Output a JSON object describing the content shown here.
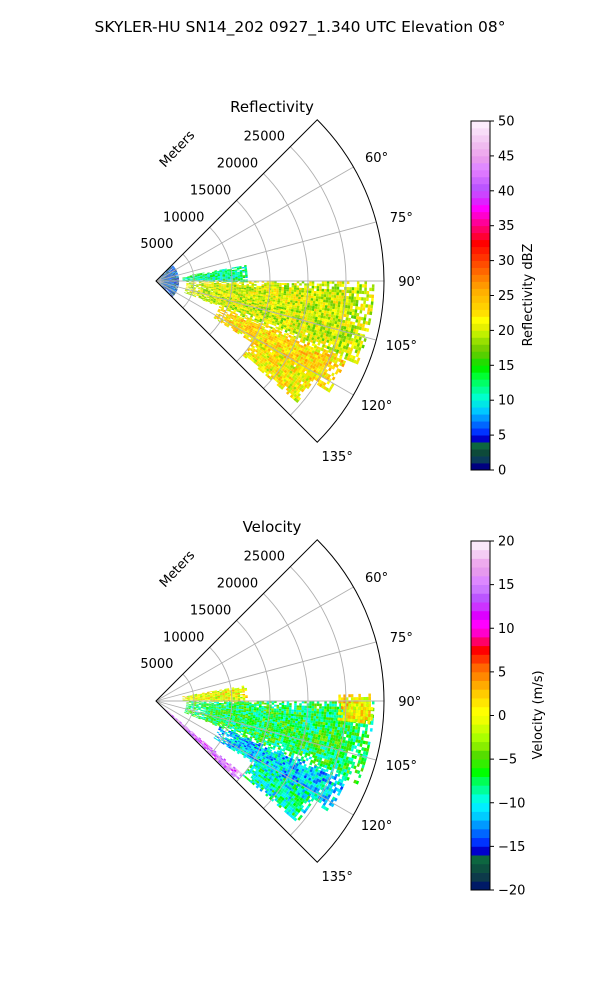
{
  "suptitle": "SKYLER-HU  SN14_202  0927_1.340 UTC Elevation 08°",
  "colors": {
    "grid": "#b0b0b0",
    "frame": "#000000",
    "background": "#ffffff"
  },
  "chart_data": [
    {
      "type": "polar-sector",
      "title": "Reflectivity",
      "radial_label": "Meters",
      "r_range": [
        0,
        30000
      ],
      "r_ticks": [
        5000,
        10000,
        15000,
        20000,
        25000
      ],
      "r_tick_labels": [
        "5000",
        "10000",
        "15000",
        "20000",
        "25000"
      ],
      "theta_range_deg": [
        45,
        135
      ],
      "theta_ticks_deg": [
        60,
        75,
        90,
        105,
        120,
        135
      ],
      "theta_tick_labels": [
        "60°",
        "75°",
        "90°",
        "105°",
        "120°",
        "135°"
      ],
      "grid": true,
      "colorbar": {
        "label": "Reflectivity dBZ",
        "range": [
          0,
          50
        ],
        "ticks": [
          "0",
          "5",
          "10",
          "15",
          "20",
          "25",
          "30",
          "35",
          "40",
          "45",
          "50"
        ],
        "palette": [
          "#000080",
          "#0a3a5a",
          "#0d4a3a",
          "#0d6640",
          "#0000c8",
          "#0033ff",
          "#0066ff",
          "#0099ff",
          "#00c8ff",
          "#00e6e6",
          "#00ffcc",
          "#00ff99",
          "#00ff66",
          "#00ff33",
          "#00f000",
          "#22dd00",
          "#55d000",
          "#77d000",
          "#99e000",
          "#c0f000",
          "#e6f000",
          "#ffff00",
          "#ffe000",
          "#ffd000",
          "#ffc000",
          "#ffb000",
          "#ff9900",
          "#ff8000",
          "#ff6600",
          "#ff4d00",
          "#ff3300",
          "#ff1a00",
          "#ff0000",
          "#ff0033",
          "#ff0066",
          "#ff0099",
          "#ff00cc",
          "#ff00ff",
          "#dd22ff",
          "#cc44ff",
          "#bb55ff",
          "#cc66ff",
          "#dd77ff",
          "#e08aff",
          "#e899ee",
          "#eeaaee",
          "#f0bbf0",
          "#f4ccf4",
          "#f8ddf8",
          "#fcecfc"
        ]
      },
      "regions": [
        {
          "theta": [
            90,
            112
          ],
          "r": [
            4000,
            28500
          ],
          "value": 20,
          "palette": "r"
        },
        {
          "theta": [
            112,
            122
          ],
          "r": [
            9000,
            27000
          ],
          "value": 23,
          "palette": "r"
        },
        {
          "theta": [
            120,
            130
          ],
          "r": [
            15000,
            24500
          ],
          "value": 22,
          "palette": "r"
        },
        {
          "theta": [
            80,
            90
          ],
          "r": [
            3500,
            12000
          ],
          "value": 12,
          "palette": "r"
        },
        {
          "theta": [
            45,
            135
          ],
          "r": [
            400,
            3000
          ],
          "value": 5,
          "palette": "r"
        }
      ]
    },
    {
      "type": "polar-sector",
      "title": "Velocity",
      "radial_label": "Meters",
      "r_range": [
        0,
        30000
      ],
      "r_ticks": [
        5000,
        10000,
        15000,
        20000,
        25000
      ],
      "r_tick_labels": [
        "5000",
        "10000",
        "15000",
        "20000",
        "25000"
      ],
      "theta_range_deg": [
        45,
        135
      ],
      "theta_ticks_deg": [
        60,
        75,
        90,
        105,
        120,
        135
      ],
      "theta_tick_labels": [
        "60°",
        "75°",
        "90°",
        "105°",
        "120°",
        "135°"
      ],
      "grid": true,
      "colorbar": {
        "label": "Velocity (m/s)",
        "range": [
          -20,
          20
        ],
        "ticks": [
          "−20",
          "−15",
          "−10",
          "−5",
          "0",
          "5",
          "10",
          "15",
          "20"
        ],
        "palette": [
          "#001a66",
          "#0d3a4a",
          "#0d5040",
          "#0d6640",
          "#0000cc",
          "#0033ff",
          "#0066ff",
          "#0099ff",
          "#00ccff",
          "#00eeff",
          "#00ffdd",
          "#00ff99",
          "#00ff55",
          "#00ff00",
          "#33ee00",
          "#55dd00",
          "#88ee00",
          "#aaff00",
          "#ccff00",
          "#eeff00",
          "#ffff00",
          "#ffe600",
          "#ffcc00",
          "#ffaa00",
          "#ff8800",
          "#ff6600",
          "#ff3300",
          "#ff0000",
          "#ff0066",
          "#ff00cc",
          "#ff00ff",
          "#dd00ff",
          "#cc33ff",
          "#bb55ff",
          "#cc77ff",
          "#dd88ff",
          "#e699ee",
          "#eeaaee",
          "#f4ccf4",
          "#fae8fa"
        ]
      },
      "regions": [
        {
          "theta": [
            90,
            112
          ],
          "r": [
            4000,
            28500
          ],
          "value": -7,
          "palette": "v"
        },
        {
          "theta": [
            112,
            122
          ],
          "r": [
            9000,
            27000
          ],
          "value": -11,
          "palette": "v"
        },
        {
          "theta": [
            120,
            130
          ],
          "r": [
            15000,
            24500
          ],
          "value": -9,
          "palette": "v"
        },
        {
          "theta": [
            130,
            134
          ],
          "r": [
            1500,
            15000
          ],
          "value": 15,
          "palette": "v"
        },
        {
          "theta": [
            88,
            96
          ],
          "r": [
            24000,
            28500
          ],
          "value": 1,
          "palette": "v"
        },
        {
          "theta": [
            80,
            90
          ],
          "r": [
            3500,
            12000
          ],
          "value": 0,
          "palette": "v"
        }
      ]
    }
  ]
}
